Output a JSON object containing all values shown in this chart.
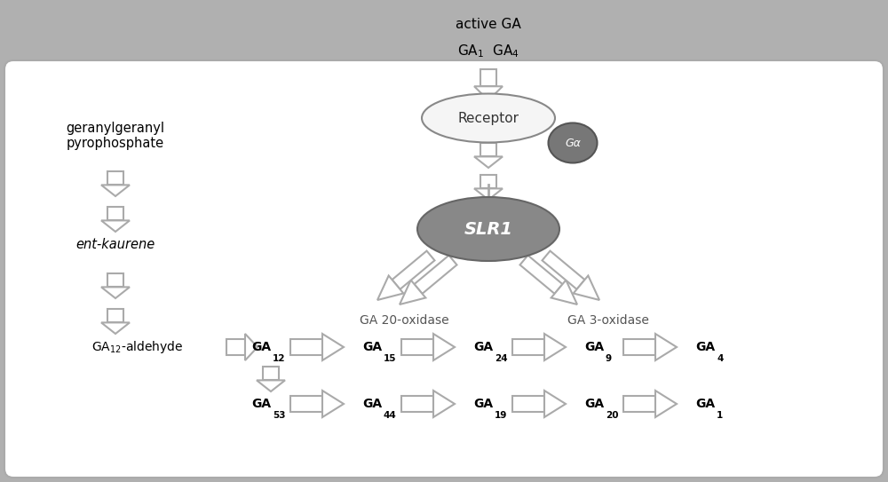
{
  "bg_outer": "#b0b0b0",
  "bg_inner": "#ffffff",
  "text_color": "#000000",
  "slr1_color": "#808080",
  "ga_circle_color": "#606060",
  "receptor_fill": "#f0f0f0",
  "receptor_stroke": "#606060",
  "arrow_color": "#808080",
  "title_text": "active GA\nGA₁  GA₄",
  "receptor_label": "Receptor",
  "ga_label": "Gα",
  "slr1_label": "SLR1",
  "geranyl_label": "geranylgeranyl\npyrophosphate",
  "kaurene_label": "ent-kaurene",
  "ga12ald_label": "GA₁₂-aldehyde",
  "ox20_label": "GA 20-oxidase",
  "ox3_label": "GA 3-oxidase",
  "row1": [
    "GA₁₂",
    "GA₁₅",
    "GA₂₄",
    "GA₉",
    "GA₄"
  ],
  "row2": [
    "GA₅₃",
    "GA₄₄",
    "GA₁₉",
    "GA₂₀",
    "GA₁"
  ],
  "row1_subs": [
    "12",
    "15",
    "24",
    "9",
    "4"
  ],
  "row2_subs": [
    "53",
    "44",
    "19",
    "20",
    "1"
  ]
}
